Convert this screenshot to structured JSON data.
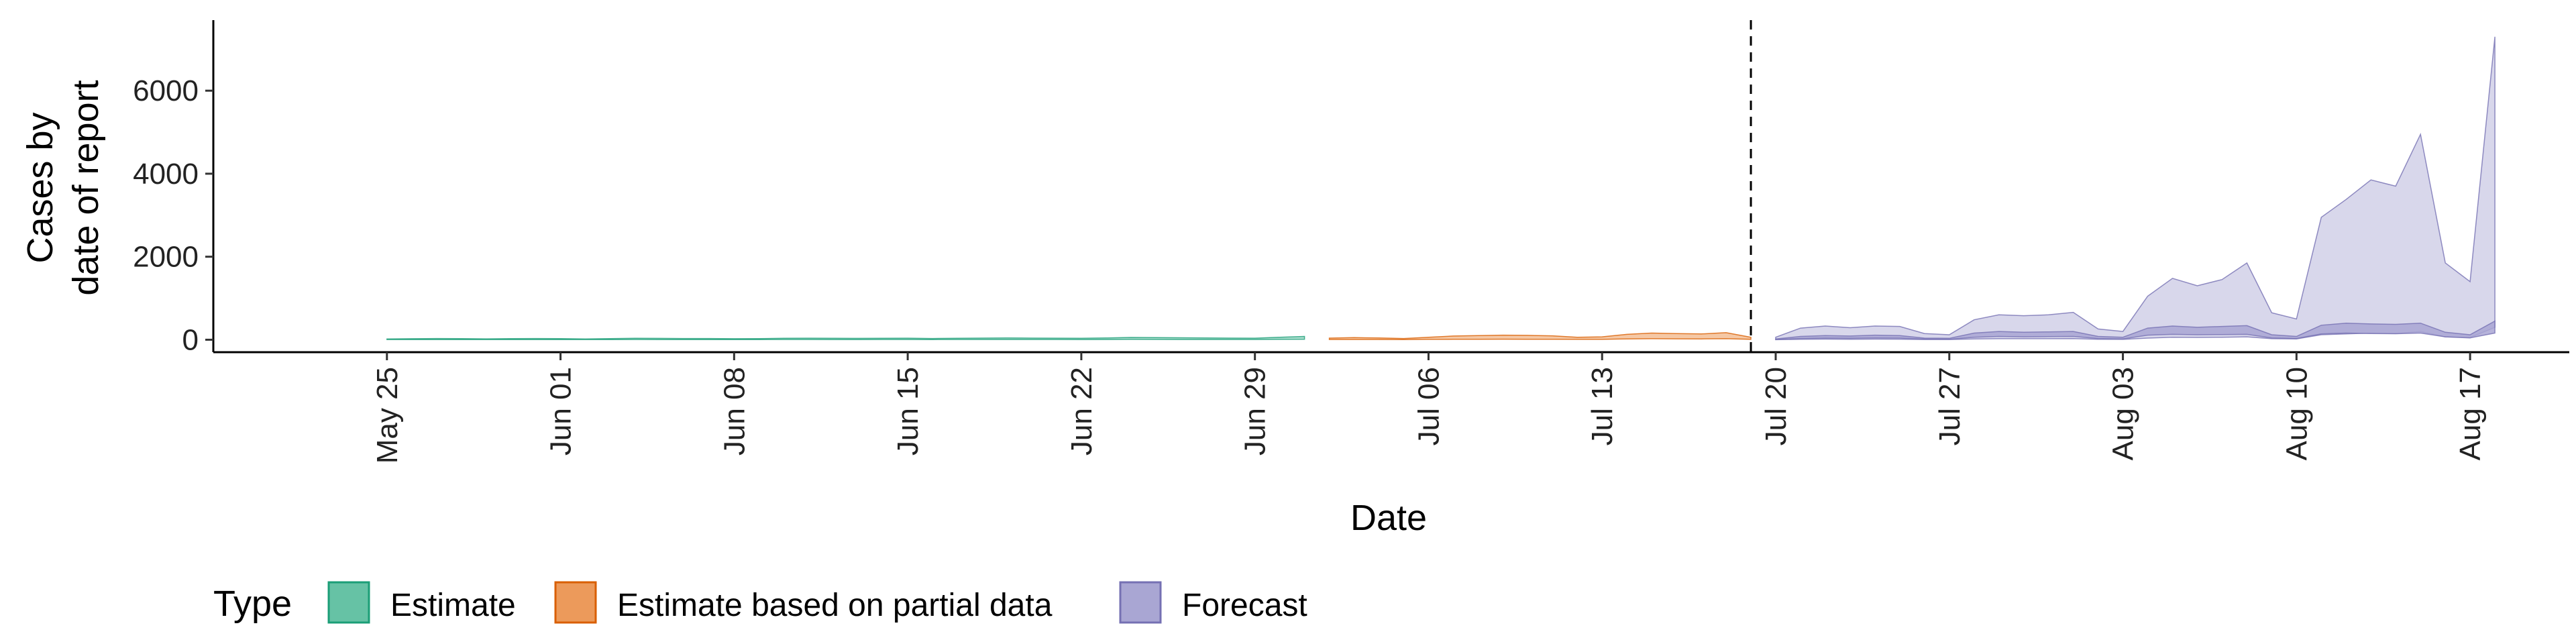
{
  "chart_data": {
    "type": "area",
    "xlabel": "Date",
    "ylabel_lines": [
      "Cases by",
      "date of report"
    ],
    "x_range": [
      "2020-05-18",
      "2020-08-21"
    ],
    "ylim": [
      -300,
      7700
    ],
    "y_ticks": [
      0,
      2000,
      4000,
      6000
    ],
    "x_ticks": [
      {
        "date": "2020-05-25",
        "label": "May 25"
      },
      {
        "date": "2020-06-01",
        "label": "Jun 01"
      },
      {
        "date": "2020-06-08",
        "label": "Jun 08"
      },
      {
        "date": "2020-06-15",
        "label": "Jun 15"
      },
      {
        "date": "2020-06-22",
        "label": "Jun 22"
      },
      {
        "date": "2020-06-29",
        "label": "Jun 29"
      },
      {
        "date": "2020-07-06",
        "label": "Jul 06"
      },
      {
        "date": "2020-07-13",
        "label": "Jul 13"
      },
      {
        "date": "2020-07-20",
        "label": "Jul 20"
      },
      {
        "date": "2020-07-27",
        "label": "Jul 27"
      },
      {
        "date": "2020-08-03",
        "label": "Aug 03"
      },
      {
        "date": "2020-08-10",
        "label": "Aug 10"
      },
      {
        "date": "2020-08-17",
        "label": "Aug 17"
      }
    ],
    "vline_date": "2020-07-19",
    "grid": false,
    "legend": {
      "title": "Type",
      "placement": "bottom",
      "entries": [
        {
          "label": "Estimate",
          "fill": "#66c2a5",
          "stroke": "#1b9e77"
        },
        {
          "label": "Estimate based on partial data",
          "fill": "#ec9a5b",
          "stroke": "#d95f02"
        },
        {
          "label": "Forecast",
          "fill": "#a9a6d3",
          "stroke": "#7570b3"
        }
      ]
    },
    "series": [
      {
        "type": "Estimate",
        "start_date": "2020-05-25",
        "dates": [
          "2020-05-25",
          "2020-05-26",
          "2020-05-27",
          "2020-05-28",
          "2020-05-29",
          "2020-05-30",
          "2020-05-31",
          "2020-06-01",
          "2020-06-02",
          "2020-06-03",
          "2020-06-04",
          "2020-06-05",
          "2020-06-06",
          "2020-06-07",
          "2020-06-08",
          "2020-06-09",
          "2020-06-10",
          "2020-06-11",
          "2020-06-12",
          "2020-06-13",
          "2020-06-14",
          "2020-06-15",
          "2020-06-16",
          "2020-06-17",
          "2020-06-18",
          "2020-06-19",
          "2020-06-20",
          "2020-06-21",
          "2020-06-22",
          "2020-06-23",
          "2020-06-24",
          "2020-06-25",
          "2020-06-26",
          "2020-06-27",
          "2020-06-28",
          "2020-06-29",
          "2020-06-30",
          "2020-07-01"
        ],
        "upper": [
          20,
          25,
          30,
          28,
          22,
          26,
          30,
          27,
          20,
          28,
          35,
          33,
          30,
          30,
          25,
          28,
          35,
          38,
          36,
          33,
          35,
          38,
          30,
          35,
          40,
          42,
          40,
          38,
          35,
          42,
          55,
          52,
          48,
          45,
          40,
          38,
          60,
          80
        ],
        "lower": [
          2,
          3,
          4,
          3,
          2,
          3,
          4,
          3,
          2,
          3,
          5,
          4,
          3,
          3,
          3,
          4,
          5,
          5,
          4,
          4,
          5,
          5,
          4,
          5,
          6,
          6,
          5,
          5,
          4,
          6,
          8,
          7,
          6,
          6,
          5,
          5,
          8,
          12
        ]
      },
      {
        "type": "Estimate based on partial data",
        "dates": [
          "2020-07-02",
          "2020-07-03",
          "2020-07-04",
          "2020-07-05",
          "2020-07-06",
          "2020-07-07",
          "2020-07-08",
          "2020-07-09",
          "2020-07-10",
          "2020-07-11",
          "2020-07-12",
          "2020-07-13",
          "2020-07-14",
          "2020-07-15",
          "2020-07-16",
          "2020-07-17",
          "2020-07-18",
          "2020-07-19"
        ],
        "upper": [
          40,
          50,
          45,
          30,
          60,
          90,
          100,
          110,
          105,
          95,
          60,
          70,
          130,
          160,
          150,
          140,
          170,
          60
        ],
        "lower": [
          5,
          6,
          5,
          4,
          8,
          10,
          12,
          14,
          12,
          10,
          8,
          8,
          20,
          25,
          22,
          20,
          25,
          10
        ]
      },
      {
        "type": "Forecast",
        "dates": [
          "2020-07-20",
          "2020-07-21",
          "2020-07-22",
          "2020-07-23",
          "2020-07-24",
          "2020-07-25",
          "2020-07-26",
          "2020-07-27",
          "2020-07-28",
          "2020-07-29",
          "2020-07-30",
          "2020-07-31",
          "2020-08-01",
          "2020-08-02",
          "2020-08-03",
          "2020-08-04",
          "2020-08-05",
          "2020-08-06",
          "2020-08-07",
          "2020-08-08",
          "2020-08-09",
          "2020-08-10",
          "2020-08-11",
          "2020-08-12",
          "2020-08-13",
          "2020-08-14",
          "2020-08-15",
          "2020-08-16",
          "2020-08-17",
          "2020-08-18"
        ],
        "outer_upper": [
          60,
          280,
          330,
          290,
          330,
          320,
          150,
          120,
          480,
          600,
          580,
          600,
          660,
          260,
          200,
          1050,
          1480,
          1300,
          1450,
          1850,
          650,
          500,
          2950,
          3380,
          3850,
          3700,
          4950,
          1850,
          1400,
          7300
        ],
        "outer_lower": [
          0,
          10,
          15,
          12,
          15,
          14,
          6,
          5,
          20,
          25,
          25,
          25,
          28,
          10,
          8,
          40,
          60,
          55,
          60,
          70,
          25,
          20,
          120,
          140,
          160,
          150,
          200,
          70,
          55,
          300
        ],
        "inner_upper": [
          20,
          80,
          100,
          90,
          110,
          100,
          40,
          35,
          160,
          200,
          180,
          190,
          200,
          80,
          60,
          280,
          330,
          300,
          320,
          340,
          120,
          80,
          350,
          400,
          380,
          370,
          400,
          180,
          120,
          450
        ],
        "inner_lower": [
          5,
          30,
          40,
          35,
          45,
          40,
          15,
          12,
          60,
          80,
          70,
          75,
          80,
          30,
          20,
          110,
          130,
          120,
          125,
          130,
          45,
          30,
          140,
          160,
          150,
          145,
          160,
          70,
          45,
          160
        ]
      }
    ]
  }
}
